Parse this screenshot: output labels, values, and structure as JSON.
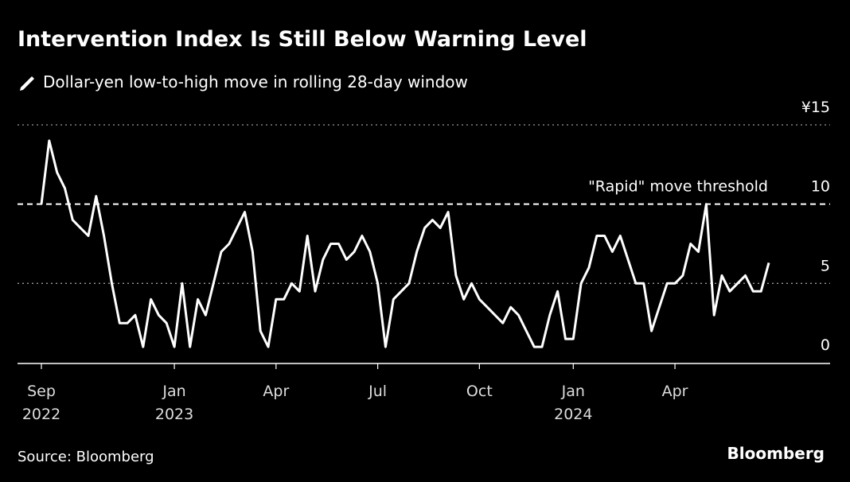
{
  "chart_data": {
    "type": "line",
    "title": "Intervention Index Is Still Below Warning Level",
    "source": "Source: Bloomberg",
    "brand": "Bloomberg",
    "categories": [
      "Sep\n2022",
      null,
      null,
      null,
      null,
      null,
      null,
      null,
      null,
      null,
      null,
      null,
      null,
      null,
      null,
      null,
      null,
      "Jan\n2023",
      null,
      null,
      null,
      null,
      null,
      null,
      null,
      null,
      null,
      null,
      null,
      null,
      "Apr",
      null,
      null,
      null,
      null,
      null,
      null,
      null,
      null,
      null,
      null,
      null,
      null,
      "Jul",
      null,
      null,
      null,
      null,
      null,
      null,
      null,
      null,
      null,
      null,
      null,
      null,
      "Oct",
      null,
      null,
      null,
      null,
      null,
      null,
      null,
      null,
      null,
      null,
      null,
      "Jan\n2024",
      null,
      null,
      null,
      null,
      null,
      null,
      null,
      null,
      null,
      null,
      null,
      null,
      "Apr",
      null,
      null,
      null,
      null,
      null,
      null,
      null,
      null,
      null,
      null,
      null,
      null
    ],
    "series": [
      {
        "name": "Dollar-yen low-to-high move in rolling 28-day window",
        "color": "#ffffff",
        "values": [
          10,
          14,
          12,
          11,
          9,
          8.5,
          8,
          10.5,
          8,
          5,
          2.5,
          2.5,
          3,
          1,
          4,
          3,
          2.5,
          1,
          5,
          1,
          4,
          3,
          5,
          7,
          7.5,
          8.5,
          9.5,
          7,
          2,
          1,
          4,
          4,
          5,
          4.5,
          8,
          4.5,
          6.5,
          7.5,
          7.5,
          6.5,
          7,
          8,
          7,
          5,
          1,
          4,
          4.5,
          5,
          7,
          8.5,
          9,
          8.5,
          9.5,
          5.5,
          4,
          5,
          4,
          3.5,
          3,
          2.5,
          3.5,
          3,
          2,
          1,
          1,
          3,
          4.5,
          1.5,
          1.5,
          5,
          6,
          8,
          8,
          7,
          8,
          6.5,
          5,
          5,
          2,
          3.5,
          5,
          5,
          5.5,
          7.5,
          7,
          10,
          3,
          5.5,
          4.5,
          5,
          5.5,
          4.5,
          4.5,
          6.3
        ]
      }
    ],
    "ylim": [
      0,
      15
    ],
    "yticks": [
      0,
      5,
      10,
      {
        "value": 15,
        "label": "¥15"
      }
    ],
    "threshold": {
      "value": 10,
      "label": "\"Rapid\" move threshold"
    },
    "grid": true
  }
}
